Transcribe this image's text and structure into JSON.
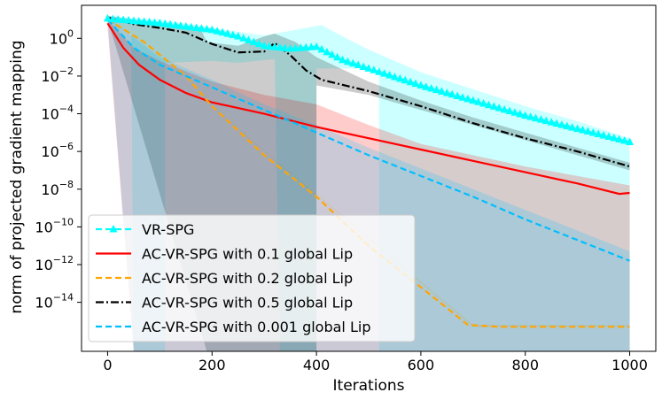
{
  "chart_data": {
    "type": "line",
    "title": "",
    "xlabel": "Iterations",
    "ylabel": "norm of projected gradient mapping",
    "yscale": "log",
    "xlim": [
      -50,
      1050
    ],
    "ylim_exp": [
      -16.6,
      1.75
    ],
    "xticks": [
      0,
      200,
      400,
      600,
      800,
      1000
    ],
    "xtick_labels": [
      "0",
      "200",
      "400",
      "600",
      "800",
      "1000"
    ],
    "yticks_exp": [
      0,
      -2,
      -4,
      -6,
      -8,
      -10,
      -12,
      -14
    ],
    "ytick_labels": [
      {
        "base": "10",
        "exp": "0"
      },
      {
        "base": "10",
        "exp": "−2"
      },
      {
        "base": "10",
        "exp": "−4"
      },
      {
        "base": "10",
        "exp": "−6"
      },
      {
        "base": "10",
        "exp": "−8"
      },
      {
        "base": "10",
        "exp": "−10"
      },
      {
        "base": "10",
        "exp": "−12"
      },
      {
        "base": "10",
        "exp": "−14"
      }
    ],
    "legend_position": "lower-left",
    "series": [
      {
        "name": "VR-SPG",
        "color": "#00ffff",
        "dash": "dashed",
        "marker": "triangle",
        "mean": [
          [
            0,
            1.05
          ],
          [
            100,
            0.8
          ],
          [
            200,
            0.45
          ],
          [
            250,
            0.1
          ],
          [
            300,
            -0.4
          ],
          [
            350,
            -0.55
          ],
          [
            400,
            -0.45
          ],
          [
            450,
            -1.15
          ],
          [
            500,
            -1.6
          ],
          [
            600,
            -2.5
          ],
          [
            700,
            -3.3
          ],
          [
            800,
            -4.1
          ],
          [
            900,
            -4.8
          ],
          [
            1000,
            -5.5
          ]
        ],
        "upper": [
          [
            0,
            1.15
          ],
          [
            100,
            1.0
          ],
          [
            200,
            0.55
          ],
          [
            300,
            0.15
          ],
          [
            350,
            0.4
          ],
          [
            410,
            0.7
          ],
          [
            450,
            0.1
          ],
          [
            500,
            -0.6
          ],
          [
            600,
            -1.8
          ],
          [
            700,
            -2.7
          ],
          [
            800,
            -3.6
          ],
          [
            900,
            -4.4
          ],
          [
            1000,
            -5.3
          ]
        ],
        "lower": [
          [
            0,
            0.95
          ],
          [
            45,
            0.2
          ],
          [
            50,
            -16.6
          ],
          [
            110,
            -16.6
          ],
          [
            110,
            -1.3
          ],
          [
            200,
            -1.2
          ],
          [
            250,
            -1.3
          ],
          [
            320,
            -1.1
          ],
          [
            330,
            -16.6
          ],
          [
            400,
            -16.6
          ],
          [
            400,
            -1.6
          ],
          [
            520,
            -1.6
          ],
          [
            520,
            -16.6
          ],
          [
            1000,
            -16.6
          ]
        ]
      },
      {
        "name": "AC-VR-SPG with 0.1 global Lip",
        "color": "#ff0000",
        "dash": "solid",
        "mean": [
          [
            0,
            0.8
          ],
          [
            30,
            -0.5
          ],
          [
            60,
            -1.4
          ],
          [
            100,
            -2.2
          ],
          [
            150,
            -2.9
          ],
          [
            200,
            -3.4
          ],
          [
            300,
            -4.0
          ],
          [
            400,
            -4.7
          ],
          [
            500,
            -5.3
          ],
          [
            600,
            -5.9
          ],
          [
            700,
            -6.5
          ],
          [
            800,
            -7.1
          ],
          [
            900,
            -7.7
          ],
          [
            980,
            -8.25
          ],
          [
            1000,
            -8.2
          ]
        ],
        "upper": [
          [
            0,
            1.0
          ],
          [
            50,
            -0.5
          ],
          [
            100,
            -1.2
          ],
          [
            200,
            -2.3
          ],
          [
            300,
            -3.0
          ],
          [
            400,
            -3.5
          ],
          [
            500,
            -4.6
          ],
          [
            600,
            -5.6
          ],
          [
            700,
            -6.2
          ],
          [
            800,
            -6.8
          ],
          [
            900,
            -7.3
          ],
          [
            1000,
            -7.8
          ]
        ],
        "lower": [
          [
            0,
            0.6
          ],
          [
            50,
            -16.6
          ],
          [
            1000,
            -16.6
          ]
        ]
      },
      {
        "name": "AC-VR-SPG with 0.2 global Lip",
        "color": "#ffa500",
        "dash": "dashed",
        "mean": [
          [
            0,
            1.0
          ],
          [
            70,
            -0.2
          ],
          [
            150,
            -2.0
          ],
          [
            200,
            -3.6
          ],
          [
            300,
            -6.2
          ],
          [
            400,
            -8.4
          ],
          [
            500,
            -11.0
          ],
          [
            600,
            -13.2
          ],
          [
            650,
            -14.3
          ],
          [
            690,
            -15.2
          ],
          [
            750,
            -15.3
          ],
          [
            1000,
            -15.3
          ]
        ],
        "upper": [
          [
            0,
            1.0
          ],
          [
            700,
            -15.2
          ],
          [
            1000,
            -15.2
          ]
        ],
        "lower": [
          [
            0,
            1.0
          ],
          [
            700,
            -15.3
          ],
          [
            1000,
            -15.3
          ]
        ]
      },
      {
        "name": "AC-VR-SPG with 0.5 global Lip",
        "color": "#000000",
        "dash": "dashdot",
        "mean": [
          [
            0,
            1.1
          ],
          [
            50,
            0.75
          ],
          [
            100,
            0.55
          ],
          [
            150,
            0.3
          ],
          [
            200,
            -0.3
          ],
          [
            250,
            -0.75
          ],
          [
            300,
            -0.7
          ],
          [
            320,
            -0.25
          ],
          [
            350,
            -0.9
          ],
          [
            380,
            -1.7
          ],
          [
            410,
            -2.2
          ],
          [
            500,
            -2.8
          ],
          [
            600,
            -3.6
          ],
          [
            700,
            -4.5
          ],
          [
            800,
            -5.3
          ],
          [
            900,
            -6.0
          ],
          [
            1000,
            -6.8
          ]
        ],
        "upper": [
          [
            0,
            1.2
          ],
          [
            100,
            0.8
          ],
          [
            180,
            0.4
          ],
          [
            190,
            -0.2
          ],
          [
            250,
            -0.4
          ],
          [
            300,
            0.1
          ],
          [
            320,
            0.25
          ],
          [
            360,
            -0.2
          ],
          [
            400,
            -1.0
          ],
          [
            500,
            -2.3
          ],
          [
            600,
            -3.3
          ],
          [
            700,
            -4.2
          ],
          [
            800,
            -5.0
          ],
          [
            900,
            -5.8
          ],
          [
            1000,
            -6.6
          ]
        ],
        "lower": [
          [
            0,
            1.0
          ],
          [
            190,
            -16.6
          ],
          [
            400,
            -16.6
          ],
          [
            400,
            -2.5
          ],
          [
            500,
            -3.0
          ],
          [
            1000,
            -7.0
          ]
        ]
      },
      {
        "name": "AC-VR-SPG with 0.001 global Lip",
        "color": "#00bfff",
        "dash": "dashed",
        "mean": [
          [
            0,
            1.0
          ],
          [
            50,
            -0.5
          ],
          [
            100,
            -1.4
          ],
          [
            200,
            -2.6
          ],
          [
            300,
            -3.8
          ],
          [
            400,
            -5.0
          ],
          [
            500,
            -6.2
          ],
          [
            600,
            -7.3
          ],
          [
            700,
            -8.4
          ],
          [
            800,
            -9.6
          ],
          [
            900,
            -10.7
          ],
          [
            1000,
            -11.8
          ]
        ],
        "upper": [
          [
            0,
            1.1
          ],
          [
            100,
            -1.0
          ],
          [
            200,
            -2.2
          ],
          [
            300,
            -3.5
          ],
          [
            400,
            -4.6
          ],
          [
            500,
            -5.8
          ],
          [
            600,
            -6.9
          ],
          [
            700,
            -8.0
          ],
          [
            800,
            -9.1
          ],
          [
            900,
            -10.2
          ],
          [
            1000,
            -11.3
          ]
        ],
        "lower": [
          [
            0,
            0.9
          ],
          [
            50,
            -16.6
          ],
          [
            1000,
            -16.6
          ]
        ]
      }
    ]
  }
}
